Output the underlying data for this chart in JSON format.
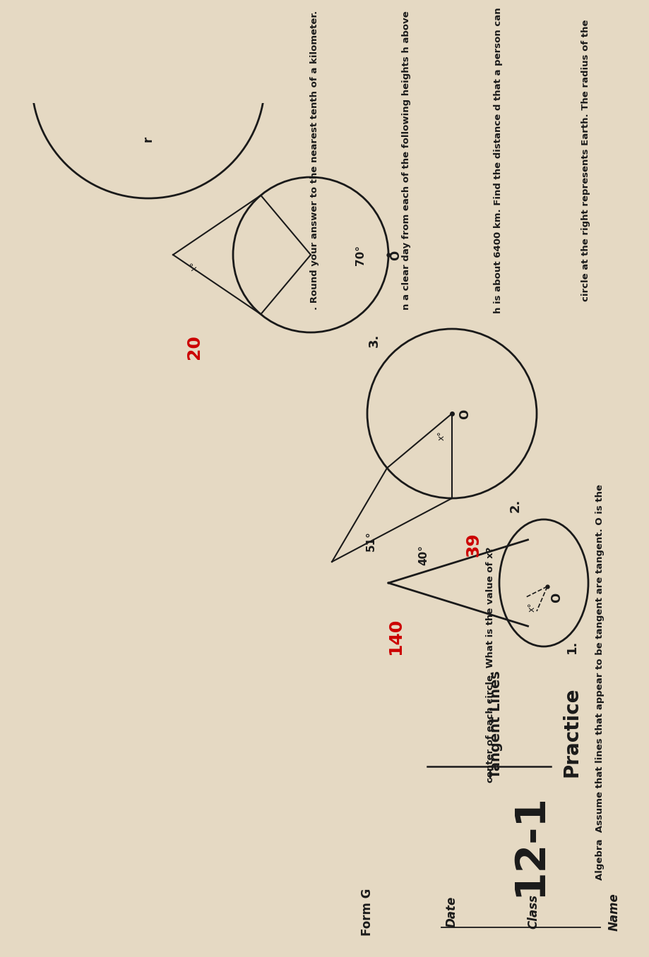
{
  "bg_color": "#e5d9c3",
  "black": "#1a1a1a",
  "red": "#cc0000",
  "dark_gray": "#2a2a2a",
  "header_name": "Name",
  "header_class": "Class",
  "header_date": "Date",
  "header_formg": "Form G",
  "title_num": "12-1",
  "title_practice": "Practice",
  "title_sub": "Tangent Lines",
  "inst1": "Algebra  Assume that lines that appear to be tangent are tangent. O is the",
  "inst2": "center of each circle. What is the value of x?",
  "prob1": "1.",
  "prob2": "2.",
  "prob3": "3.",
  "ans1": "140",
  "ans2": "39",
  "ans3": "20",
  "angle1": "40°",
  "angle2": "51°",
  "angle3": "70°",
  "btxt1": "circle at the right represents Earth. The radius of the",
  "btxt2": "h is about 6400 km. Find the distance d that a person can",
  "btxt3": "n a clear day from each of the following heights h above",
  "btxt4": ". Round your answer to the nearest tenth of a kilometer.",
  "r_label": "r"
}
